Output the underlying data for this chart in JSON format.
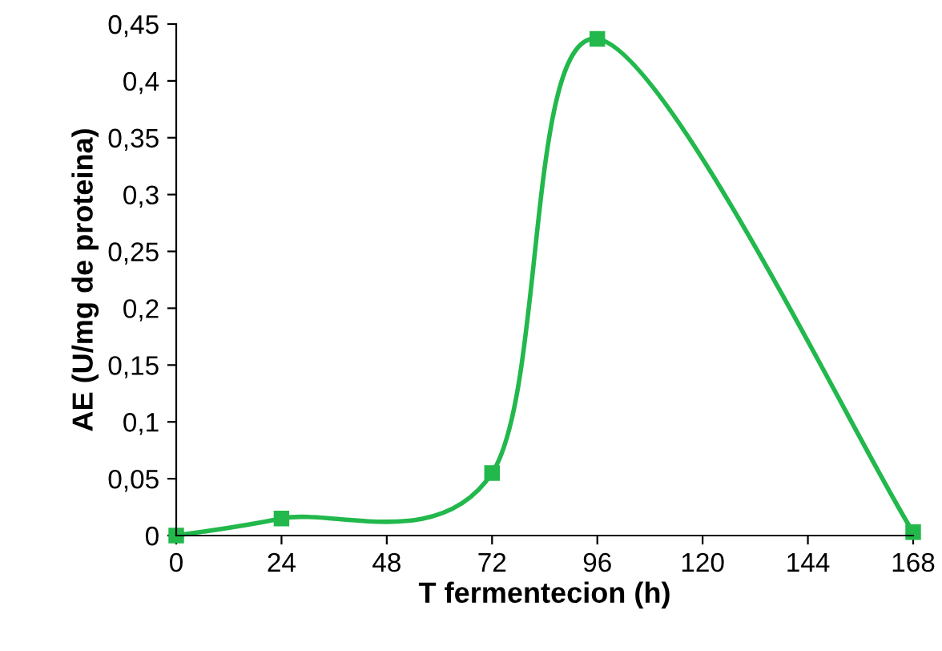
{
  "chart_data": {
    "type": "line",
    "xlabel": "T fermentecion (h)",
    "ylabel": "AE (U/mg de proteina)",
    "x": [
      0,
      24,
      72,
      96,
      168
    ],
    "series": [
      {
        "color": "#22b84c",
        "values": [
          0,
          0.015,
          0.055,
          0.437,
          0.003
        ]
      }
    ],
    "xlim": [
      0,
      168
    ],
    "xticks": [
      0,
      24,
      48,
      72,
      96,
      120,
      144,
      168
    ],
    "ylim": [
      0,
      0.45
    ],
    "yticks": [
      0,
      {
        "value": 0.05,
        "label": "0,05"
      },
      {
        "value": 0.1,
        "label": "0,1"
      },
      {
        "value": 0.15,
        "label": "0,15"
      },
      {
        "value": 0.2,
        "label": "0,2"
      },
      {
        "value": 0.25,
        "label": "0,25"
      },
      {
        "value": 0.3,
        "label": "0,3"
      },
      {
        "value": 0.35,
        "label": "0,35"
      },
      {
        "value": 0.4,
        "label": "0,4"
      },
      {
        "value": 0.45,
        "label": "0,45"
      }
    ],
    "grid": false,
    "legend": false,
    "marker": "square",
    "line_style": "solid"
  }
}
